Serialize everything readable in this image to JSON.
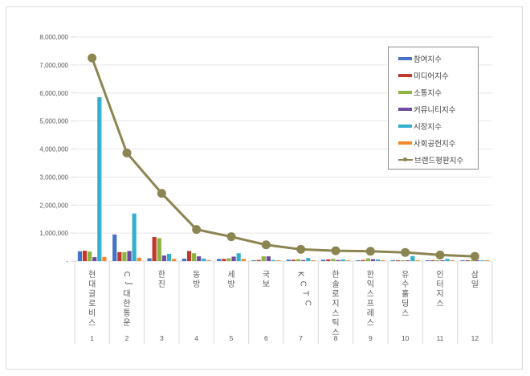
{
  "chart_data": {
    "type": "bar",
    "combo_line_series": "브랜드평판지수",
    "title": "",
    "xlabel": "",
    "ylabel": "",
    "ylim": [
      0,
      8000000
    ],
    "y_ticks": [
      "-",
      "1,000,000",
      "2,000,000",
      "3,000,000",
      "4,000,000",
      "5,000,000",
      "6,000,000",
      "7,000,000",
      "8,000,000"
    ],
    "y_tick_values": [
      0,
      1000000,
      2000000,
      3000000,
      4000000,
      5000000,
      6000000,
      7000000,
      8000000
    ],
    "grid": true,
    "legend_position": "right-inside",
    "categories": [
      "현대글로비스",
      "CJ대한통운",
      "한진",
      "동방",
      "세방",
      "국보",
      "KCTC",
      "한솔로지스틱스",
      "한익스프레스",
      "유수홀딩스",
      "인터지스",
      "삼일"
    ],
    "category_numbers": [
      "1",
      "2",
      "3",
      "4",
      "5",
      "6",
      "7",
      "8",
      "9",
      "10",
      "11",
      "12"
    ],
    "series": [
      {
        "name": "참여지수",
        "type": "bar",
        "color": "#4472C4",
        "values": [
          350000,
          950000,
          100000,
          90000,
          80000,
          30000,
          50000,
          50000,
          30000,
          30000,
          20000,
          20000
        ]
      },
      {
        "name": "미디어지수",
        "type": "bar",
        "color": "#C0392B",
        "values": [
          370000,
          320000,
          860000,
          360000,
          80000,
          40000,
          50000,
          60000,
          40000,
          30000,
          30000,
          30000
        ]
      },
      {
        "name": "소통지수",
        "type": "bar",
        "color": "#8DB441",
        "values": [
          340000,
          320000,
          820000,
          280000,
          100000,
          170000,
          70000,
          80000,
          100000,
          30000,
          30000,
          30000
        ]
      },
      {
        "name": "커뮤니티지수",
        "type": "bar",
        "color": "#6E4B9E",
        "values": [
          140000,
          360000,
          200000,
          170000,
          160000,
          170000,
          40000,
          40000,
          70000,
          20000,
          20000,
          10000
        ]
      },
      {
        "name": "시장지수",
        "type": "bar",
        "color": "#33B0CF",
        "values": [
          5850000,
          1700000,
          260000,
          90000,
          280000,
          40000,
          110000,
          60000,
          60000,
          180000,
          80000,
          20000
        ]
      },
      {
        "name": "사회공헌지수",
        "type": "bar",
        "color": "#F28A2C",
        "values": [
          150000,
          120000,
          80000,
          30000,
          80000,
          20000,
          10000,
          10000,
          10000,
          10000,
          10000,
          10000
        ]
      },
      {
        "name": "브랜드평판지수",
        "type": "line",
        "color": "#8C8451",
        "values": [
          7250000,
          3860000,
          2420000,
          1130000,
          870000,
          580000,
          420000,
          370000,
          350000,
          310000,
          220000,
          170000
        ]
      }
    ]
  },
  "legend": {
    "items": [
      {
        "label": "참여지수",
        "color": "#4472C4",
        "kind": "bar"
      },
      {
        "label": "미디어지수",
        "color": "#C0392B",
        "kind": "bar"
      },
      {
        "label": "소통지수",
        "color": "#8DB441",
        "kind": "bar"
      },
      {
        "label": "커뮤니티지수",
        "color": "#6E4B9E",
        "kind": "bar"
      },
      {
        "label": "시장지수",
        "color": "#33B0CF",
        "kind": "bar"
      },
      {
        "label": "사회공헌지수",
        "color": "#F28A2C",
        "kind": "bar"
      },
      {
        "label": "브랜드평판지수",
        "color": "#8C8451",
        "kind": "line"
      }
    ]
  },
  "colors": {
    "gridline": "#e6e6e6",
    "axis": "#d9d9d9",
    "tick_text": "#595959",
    "frame": "#d9d9d9",
    "legend_border": "#8c8c8c"
  }
}
